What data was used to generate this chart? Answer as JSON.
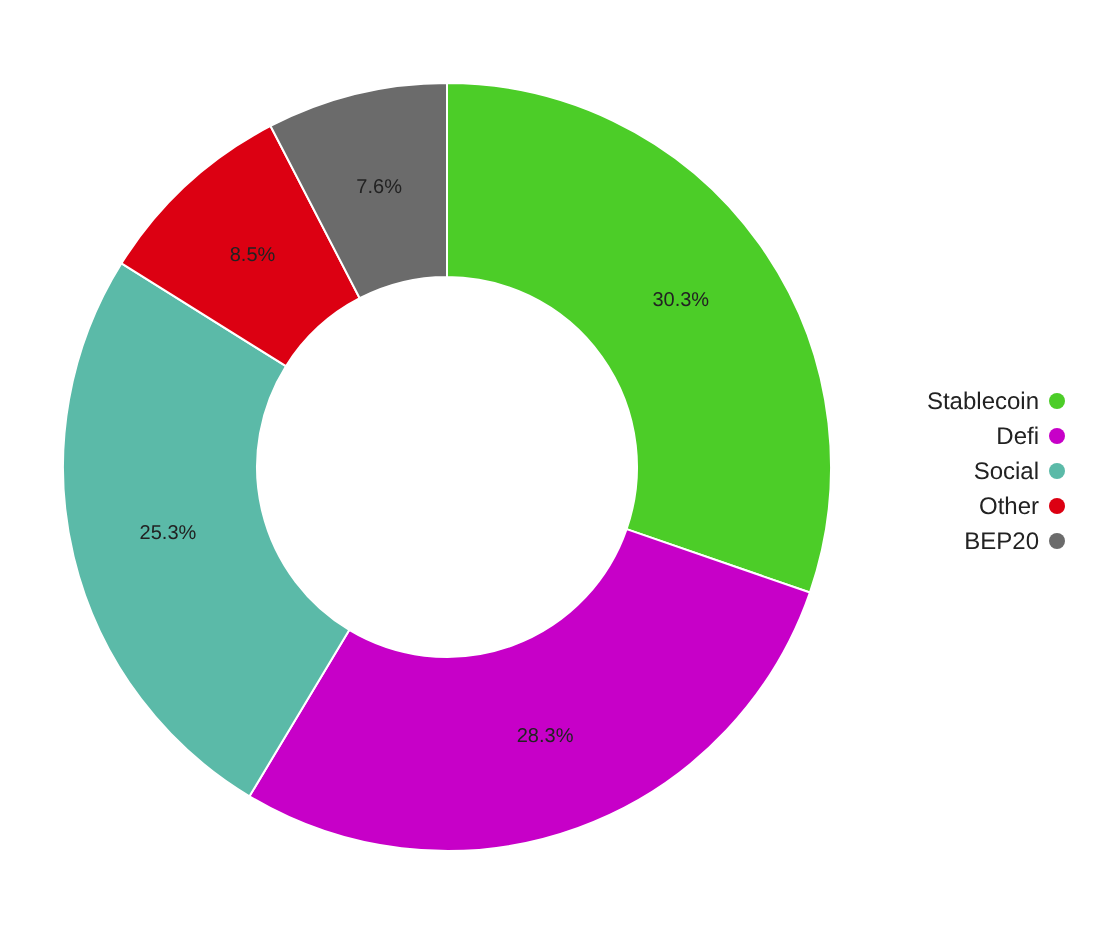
{
  "chart_data": {
    "type": "donut",
    "categories": [
      "Stablecoin",
      "Defi",
      "Social",
      "Other",
      "BEP20"
    ],
    "values": [
      30.3,
      28.3,
      25.3,
      8.5,
      7.6
    ],
    "value_labels": [
      "30.3%",
      "28.3%",
      "25.3%",
      "8.5%",
      "7.6%"
    ],
    "colors": [
      "#4ccd28",
      "#c700c8",
      "#5bbaa8",
      "#dc0012",
      "#6b6b6b"
    ],
    "legend": "right"
  }
}
